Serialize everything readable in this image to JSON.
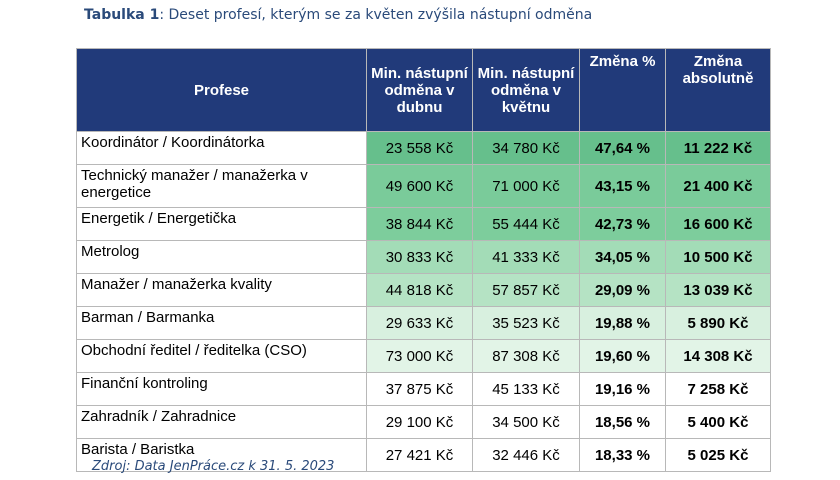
{
  "caption": {
    "label": "Tabulka 1",
    "text": ": Deset profesí, kterým se za květen zvýšila nástupní odměna"
  },
  "table": {
    "headers": [
      "Profese",
      "Min. nástupní odměna v dubnu",
      "Min. nástupní odměna v květnu",
      "Změna %",
      "Změna absolutně"
    ],
    "rows": [
      {
        "profese": "Koordinátor / Koordinátorka",
        "duben": "23 558 Kč",
        "kveten": "34 780 Kč",
        "zmena_pct": "47,64 %",
        "zmena_abs": "11 222 Kč",
        "fill": "#66bf8c"
      },
      {
        "profese": "Technický manažer / manažerka v energetice",
        "duben": "49 600 Kč",
        "kveten": "71 000 Kč",
        "zmena_pct": "43,15 %",
        "zmena_abs": "21 400 Kč",
        "fill": "#7acb9a"
      },
      {
        "profese": "Energetik / Energetička",
        "duben": "38 844 Kč",
        "kveten": "55 444 Kč",
        "zmena_pct": "42,73 %",
        "zmena_abs": "16 600 Kč",
        "fill": "#7dcd9c"
      },
      {
        "profese": "Metrolog",
        "duben": "30 833 Kč",
        "kveten": "41 333 Kč",
        "zmena_pct": "34,05 %",
        "zmena_abs": "10 500 Kč",
        "fill": "#a3dcb7"
      },
      {
        "profese": "Manažer / manažerka kvality",
        "duben": "44 818 Kč",
        "kveten": "57 857 Kč",
        "zmena_pct": "29,09 %",
        "zmena_abs": "13 039 Kč",
        "fill": "#b5e3c4"
      },
      {
        "profese": "Barman / Barmanka",
        "duben": "29 633 Kč",
        "kveten": "35 523 Kč",
        "zmena_pct": "19,88 %",
        "zmena_abs": "5 890 Kč",
        "fill": "#d8f0df"
      },
      {
        "profese": "Obchodní ředitel / ředitelka (CSO)",
        "duben": "73 000 Kč",
        "kveten": "87 308 Kč",
        "zmena_pct": "19,60 %",
        "zmena_abs": "14 308 Kč",
        "fill": "#e2f4e7"
      },
      {
        "profese": "Finanční kontroling",
        "duben": "37 875 Kč",
        "kveten": "45 133 Kč",
        "zmena_pct": "19,16 %",
        "zmena_abs": "7 258 Kč",
        "fill": "#ffffff"
      },
      {
        "profese": "Zahradník / Zahradnice",
        "duben": "29 100 Kč",
        "kveten": "34 500 Kč",
        "zmena_pct": "18,56 %",
        "zmena_abs": "5 400 Kč",
        "fill": "#ffffff"
      },
      {
        "profese": "Barista / Baristka",
        "duben": "27 421 Kč",
        "kveten": "32 446 Kč",
        "zmena_pct": "18,33 %",
        "zmena_abs": "5 025 Kč",
        "fill": "#ffffff"
      }
    ]
  },
  "source": "Zdroj: Data JenPráce.cz k 31. 5. 2023"
}
